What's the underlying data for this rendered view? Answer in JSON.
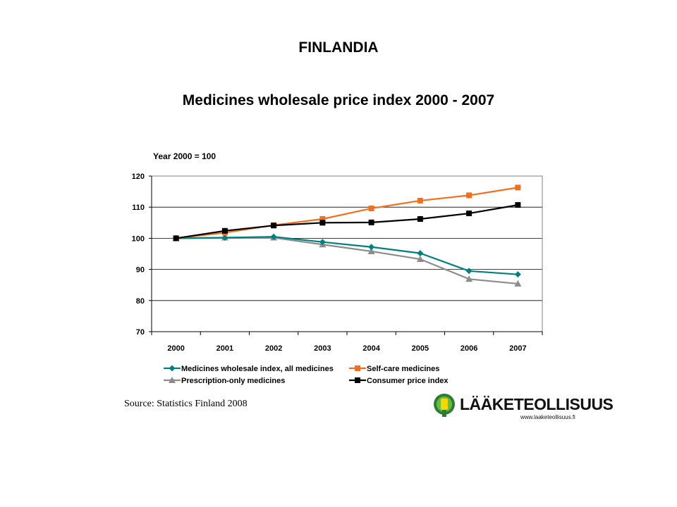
{
  "heading": "FINLANDIA",
  "chart_data": {
    "type": "line",
    "title": "Medicines wholesale price index 2000 - 2007",
    "ylabel": "Year 2000 = 100",
    "xlabel": "",
    "categories": [
      "2000",
      "2001",
      "2002",
      "2003",
      "2004",
      "2005",
      "2006",
      "2007"
    ],
    "ylim": [
      70,
      120
    ],
    "yticks": [
      70,
      80,
      90,
      100,
      110,
      120
    ],
    "grid": true,
    "legend_position": "bottom",
    "series": [
      {
        "name": "Medicines wholesale index, all medicines",
        "color": "#008080",
        "marker": "diamond",
        "values": [
          100,
          100.2,
          100.5,
          98.8,
          97.2,
          95.2,
          89.5,
          88.4
        ]
      },
      {
        "name": "Self-care medicines",
        "color": "#f26f1e",
        "marker": "square",
        "values": [
          100,
          101.8,
          104.2,
          106.2,
          109.6,
          112.1,
          113.8,
          116.3
        ]
      },
      {
        "name": "Prescription-only medicines",
        "color": "#8c8c8c",
        "marker": "triangle",
        "values": [
          100,
          100.2,
          100.2,
          98.0,
          95.8,
          93.3,
          86.9,
          85.4
        ]
      },
      {
        "name": "Consumer price index",
        "color": "#000000",
        "marker": "square",
        "values": [
          100,
          102.4,
          104.1,
          105.0,
          105.1,
          106.2,
          108.0,
          110.7
        ]
      }
    ]
  },
  "source": "Source: Statistics Finland 2008",
  "logo": {
    "text": "LÄÄKETEOLLISUUS",
    "url": "www.laaketeollisuus.fi"
  }
}
